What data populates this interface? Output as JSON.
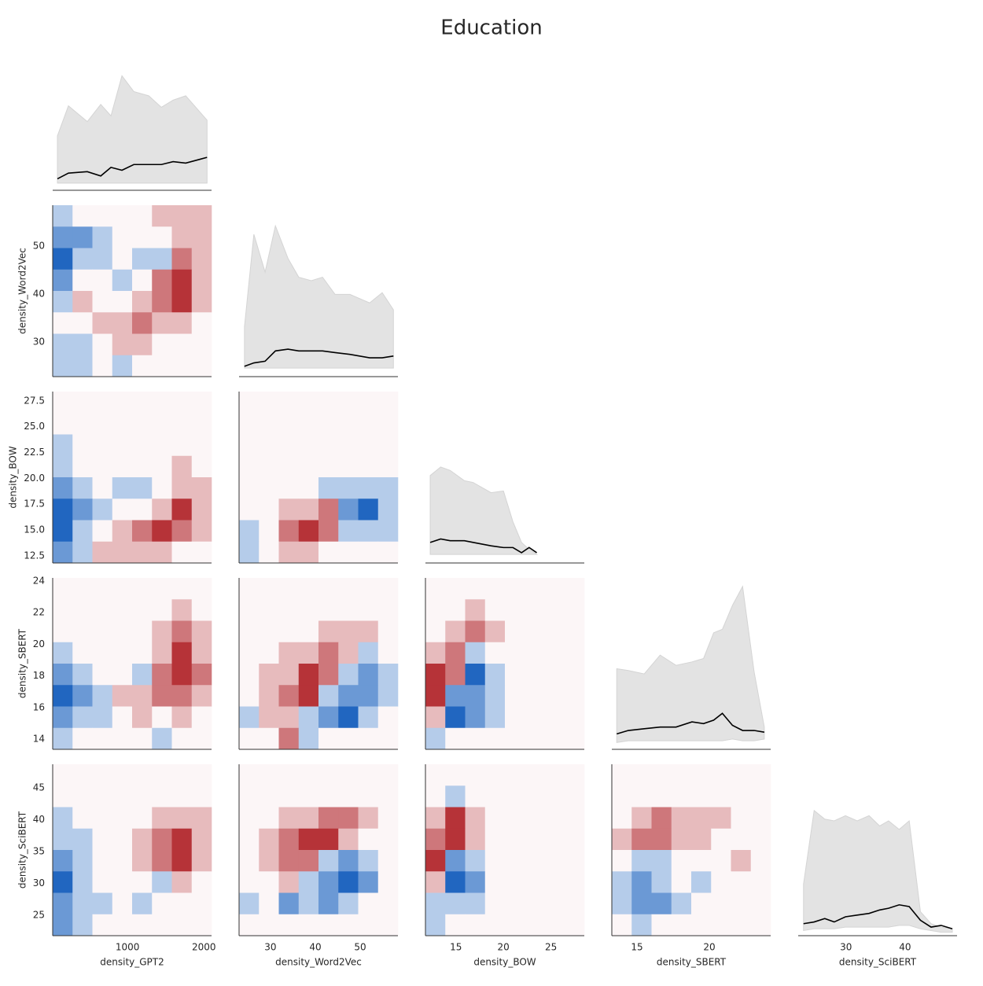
{
  "chart_data": {
    "type": "pairplot",
    "title": "Education",
    "clim": [
      -3,
      3
    ],
    "neg_color": "#2166c0",
    "pos_color": "#b2282e",
    "band_color": "#e3e3e3",
    "line_color": "#000000",
    "diag_ylim": [
      0,
      100
    ],
    "variables": [
      {
        "name": "density_GPT2",
        "lim": [
          20,
          2100
        ],
        "ticks": [
          1000,
          2000
        ]
      },
      {
        "name": "density_Word2Vec",
        "lim": [
          22.8,
          58.5
        ],
        "ticks": [
          30,
          40,
          50
        ]
      },
      {
        "name": "density_BOW",
        "lim": [
          11.8,
          28.4
        ],
        "ticks": [
          12.5,
          {
            "value": 15,
            "label": "15.0"
          },
          17.5,
          {
            "value": 20,
            "label": "20.0"
          },
          22.5,
          {
            "value": 25,
            "label": "25.0"
          },
          27.5
        ]
      },
      {
        "name": "density_SBERT",
        "lim": [
          13.35,
          24.2
        ],
        "ticks": [
          14,
          16,
          18,
          20,
          22,
          24
        ]
      },
      {
        "name": "density_SciBERT",
        "lim": [
          21.8,
          48.7
        ],
        "ticks": [
          25,
          30,
          35,
          40,
          45
        ]
      }
    ],
    "x_ticks": [
      [
        1000,
        2000
      ],
      [
        30,
        40,
        50
      ],
      [
        15,
        20,
        25
      ],
      [
        15,
        20
      ],
      [
        30,
        40
      ]
    ],
    "x_lims": [
      [
        20,
        2100
      ],
      [
        23,
        58.4
      ],
      [
        11.8,
        28.5
      ],
      [
        13.26,
        24.24
      ],
      [
        21.9,
        48.8
      ]
    ],
    "diagonals": [
      {
        "x": [
          82,
          226,
          473,
          649,
          783,
          927,
          1082,
          1278,
          1443,
          1597,
          1762,
          2041
        ],
        "mean": [
          8,
          12,
          13,
          10,
          16,
          14,
          18,
          18,
          18,
          20,
          19,
          23
        ],
        "low": [
          5,
          5,
          5,
          5,
          5,
          5,
          5,
          5,
          5,
          5,
          5,
          5
        ],
        "high": [
          38,
          59,
          48,
          60,
          52,
          80,
          69,
          66,
          58,
          63,
          66,
          49
        ]
      },
      {
        "x": [
          24.2,
          26.3,
          28.8,
          31.1,
          33.9,
          36.3,
          39.1,
          41.6,
          44.4,
          47.7,
          52.1,
          54.9,
          57.4
        ],
        "mean": [
          6,
          8,
          9,
          15,
          16,
          15,
          15,
          15,
          14,
          13,
          11,
          11,
          12
        ],
        "low": [
          5,
          5,
          5,
          5,
          5,
          5,
          5,
          5,
          5,
          5,
          5,
          5,
          5
        ],
        "high": [
          29,
          83,
          61,
          88,
          69,
          58,
          56,
          58,
          48,
          48,
          43,
          49,
          39
        ]
      },
      {
        "x": [
          12.3,
          13.4,
          14.4,
          15.9,
          16.8,
          18.7,
          20.0,
          21.0,
          21.9,
          22.7,
          23.5
        ],
        "mean": [
          12,
          14,
          13,
          13,
          12,
          10,
          9,
          9,
          6,
          9,
          6
        ],
        "low": [
          5,
          5,
          5,
          5,
          5,
          5,
          5,
          5,
          5,
          5,
          5
        ],
        "high": [
          51,
          56,
          54,
          48,
          47,
          41,
          42,
          24,
          12,
          8,
          5
        ]
      },
      {
        "x": [
          13.6,
          14.4,
          15.5,
          16.6,
          17.7,
          18.8,
          19.6,
          20.3,
          20.9,
          21.6,
          22.3,
          23.1,
          23.8
        ],
        "mean": [
          9,
          11,
          12,
          13,
          13,
          16,
          15,
          17,
          21,
          14,
          11,
          11,
          10
        ],
        "low": [
          4,
          5,
          5,
          5,
          5,
          5,
          5,
          5,
          5,
          6,
          5,
          5,
          6
        ],
        "high": [
          47,
          46,
          44,
          55,
          49,
          51,
          53,
          68,
          70,
          84,
          95,
          45,
          13
        ]
      },
      {
        "x": [
          22.8,
          24.6,
          26.4,
          28.0,
          29.9,
          31.9,
          33.9,
          35.7,
          37.2,
          39.0,
          40.7,
          42.6,
          44.4,
          46.1,
          48.0
        ],
        "mean": [
          7,
          8,
          10,
          8,
          11,
          12,
          13,
          15,
          16,
          18,
          17,
          9,
          5,
          6,
          4
        ],
        "low": [
          3,
          4,
          4,
          4,
          5,
          5,
          5,
          5,
          5,
          6,
          6,
          4,
          3,
          2,
          2
        ],
        "high": [
          30,
          73,
          68,
          67,
          70,
          67,
          70,
          64,
          67,
          62,
          67,
          14,
          7,
          5,
          4
        ]
      }
    ],
    "heatmaps": [
      [
        [
          [
            -1,
            0,
            0,
            0,
            0,
            1,
            1,
            1
          ],
          [
            -2,
            -2,
            -1,
            0,
            0,
            0,
            1,
            1
          ],
          [
            -3,
            -1,
            -1,
            0,
            -1,
            -1,
            2,
            1
          ],
          [
            -2,
            0,
            0,
            -1,
            0,
            2,
            3,
            1
          ],
          [
            -1,
            1,
            0,
            0,
            1,
            2,
            3,
            1
          ],
          [
            0,
            0,
            1,
            1,
            2,
            1,
            1,
            0
          ],
          [
            -1,
            -1,
            0,
            1,
            1,
            0,
            0,
            0
          ],
          [
            -1,
            -1,
            0,
            -1,
            0,
            0,
            0,
            0
          ]
        ]
      ],
      [
        [
          [
            0,
            0,
            0,
            0,
            0,
            0,
            0,
            0
          ],
          [
            0,
            0,
            0,
            0,
            0,
            0,
            0,
            0
          ],
          [
            -1,
            0,
            0,
            0,
            0,
            0,
            0,
            0
          ],
          [
            -1,
            0,
            0,
            0,
            0,
            0,
            1,
            0
          ],
          [
            -2,
            -1,
            0,
            -1,
            -1,
            0,
            1,
            1
          ],
          [
            -3,
            -2,
            -1,
            0,
            0,
            1,
            3,
            1
          ],
          [
            -3,
            -1,
            0,
            1,
            2,
            3,
            2,
            1
          ],
          [
            -2,
            -1,
            1,
            1,
            1,
            1,
            0,
            0
          ]
        ],
        [
          [
            0,
            0,
            0,
            0,
            0,
            0,
            0,
            0
          ],
          [
            0,
            0,
            0,
            0,
            0,
            0,
            0,
            0
          ],
          [
            0,
            0,
            0,
            0,
            0,
            0,
            0,
            0
          ],
          [
            0,
            0,
            0,
            0,
            0,
            0,
            0,
            0
          ],
          [
            0,
            0,
            0,
            0,
            -1,
            -1,
            -1,
            -1
          ],
          [
            0,
            0,
            1,
            1,
            2,
            -2,
            -3,
            -1
          ],
          [
            -1,
            0,
            2,
            3,
            2,
            -1,
            -1,
            -1
          ],
          [
            -1,
            0,
            1,
            1,
            0,
            0,
            0,
            0
          ]
        ]
      ],
      [
        [
          [
            0,
            0,
            0,
            0,
            0,
            0,
            0,
            0
          ],
          [
            0,
            0,
            0,
            0,
            0,
            0,
            1,
            0
          ],
          [
            0,
            0,
            0,
            0,
            0,
            1,
            2,
            1
          ],
          [
            -1,
            0,
            0,
            0,
            0,
            1,
            3,
            1
          ],
          [
            -2,
            -1,
            0,
            0,
            -1,
            2,
            3,
            2
          ],
          [
            -3,
            -2,
            -1,
            1,
            1,
            2,
            2,
            1
          ],
          [
            -2,
            -1,
            -1,
            0,
            1,
            0,
            1,
            0
          ],
          [
            -1,
            0,
            0,
            0,
            0,
            -1,
            0,
            0
          ]
        ],
        [
          [
            0,
            0,
            0,
            0,
            0,
            0,
            0,
            0
          ],
          [
            0,
            0,
            0,
            0,
            0,
            0,
            0,
            0
          ],
          [
            0,
            0,
            0,
            0,
            1,
            1,
            1,
            0
          ],
          [
            0,
            0,
            1,
            1,
            2,
            1,
            -1,
            0
          ],
          [
            0,
            1,
            1,
            3,
            2,
            -1,
            -2,
            -1
          ],
          [
            0,
            1,
            2,
            3,
            -1,
            -2,
            -2,
            -1
          ],
          [
            -1,
            1,
            1,
            -1,
            -2,
            -3,
            -1,
            0
          ],
          [
            0,
            0,
            2,
            -1,
            0,
            0,
            0,
            0
          ]
        ],
        [
          [
            0,
            0,
            0,
            0,
            0,
            0,
            0,
            0
          ],
          [
            0,
            0,
            1,
            0,
            0,
            0,
            0,
            0
          ],
          [
            0,
            1,
            2,
            1,
            0,
            0,
            0,
            0
          ],
          [
            1,
            2,
            -1,
            0,
            0,
            0,
            0,
            0
          ],
          [
            3,
            2,
            -3,
            -1,
            0,
            0,
            0,
            0
          ],
          [
            3,
            -2,
            -2,
            -1,
            0,
            0,
            0,
            0
          ],
          [
            1,
            -3,
            -2,
            -1,
            0,
            0,
            0,
            0
          ],
          [
            -1,
            0,
            0,
            0,
            0,
            0,
            0,
            0
          ]
        ]
      ],
      [
        [
          [
            0,
            0,
            0,
            0,
            0,
            0,
            0,
            0
          ],
          [
            0,
            0,
            0,
            0,
            0,
            0,
            0,
            0
          ],
          [
            -1,
            0,
            0,
            0,
            0,
            1,
            1,
            1
          ],
          [
            -1,
            -1,
            0,
            0,
            1,
            2,
            3,
            1
          ],
          [
            -2,
            -1,
            0,
            0,
            1,
            2,
            3,
            1
          ],
          [
            -3,
            -1,
            0,
            0,
            0,
            -1,
            1,
            0
          ],
          [
            -2,
            -1,
            -1,
            0,
            -1,
            0,
            0,
            0
          ],
          [
            -2,
            -1,
            0,
            0,
            0,
            0,
            0,
            0
          ]
        ],
        [
          [
            0,
            0,
            0,
            0,
            0,
            0,
            0,
            0
          ],
          [
            0,
            0,
            0,
            0,
            0,
            0,
            0,
            0
          ],
          [
            0,
            0,
            1,
            1,
            2,
            2,
            1,
            0
          ],
          [
            0,
            1,
            2,
            3,
            3,
            1,
            0,
            0
          ],
          [
            0,
            1,
            2,
            2,
            -1,
            -2,
            -1,
            0
          ],
          [
            0,
            0,
            1,
            -1,
            -2,
            -3,
            -2,
            0
          ],
          [
            -1,
            0,
            -2,
            -1,
            -2,
            -1,
            0,
            0
          ],
          [
            0,
            0,
            0,
            0,
            0,
            0,
            0,
            0
          ]
        ],
        [
          [
            0,
            0,
            0,
            0,
            0,
            0,
            0,
            0
          ],
          [
            0,
            -1,
            0,
            0,
            0,
            0,
            0,
            0
          ],
          [
            1,
            3,
            1,
            0,
            0,
            0,
            0,
            0
          ],
          [
            2,
            3,
            1,
            0,
            0,
            0,
            0,
            0
          ],
          [
            3,
            -2,
            -1,
            0,
            0,
            0,
            0,
            0
          ],
          [
            1,
            -3,
            -2,
            0,
            0,
            0,
            0,
            0
          ],
          [
            -1,
            -1,
            -1,
            0,
            0,
            0,
            0,
            0
          ],
          [
            -1,
            0,
            0,
            0,
            0,
            0,
            0,
            0
          ]
        ],
        [
          [
            0,
            0,
            0,
            0,
            0,
            0,
            0,
            0
          ],
          [
            0,
            0,
            0,
            0,
            0,
            0,
            0,
            0
          ],
          [
            0,
            1,
            2,
            1,
            1,
            1,
            0,
            0
          ],
          [
            1,
            2,
            2,
            1,
            1,
            0,
            0,
            0
          ],
          [
            0,
            -1,
            -1,
            0,
            0,
            0,
            1,
            0
          ],
          [
            -1,
            -2,
            -1,
            0,
            -1,
            0,
            0,
            0
          ],
          [
            -1,
            -2,
            -2,
            -1,
            0,
            0,
            0,
            0
          ],
          [
            0,
            -1,
            0,
            0,
            0,
            0,
            0,
            0
          ]
        ]
      ]
    ]
  }
}
